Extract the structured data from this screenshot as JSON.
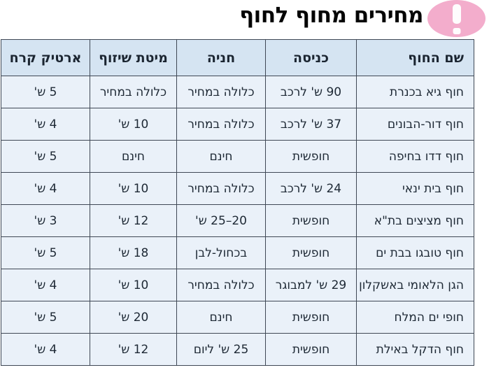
{
  "page": {
    "title": "מחירים מחוף לחוף"
  },
  "alert_icon": {
    "name": "exclamation-badge",
    "glyph": "!",
    "color": "#f3adcc"
  },
  "table": {
    "columns": [
      "שם החוף",
      "כניסה",
      "חניה",
      "מיטת שיזוף",
      "ארטיק קרח"
    ],
    "rows": [
      [
        "חוף גיא בכנרת",
        "90 ש' לרכב",
        "כלולה במחיר",
        "כלולה במחיר",
        "5 ש'"
      ],
      [
        "חוף דור-הבונים",
        "37 ש' לרכב",
        "כלולה במחיר",
        "10 ש'",
        "4 ש'"
      ],
      [
        "חוף דדו בחיפה",
        "חופשית",
        "חינם",
        "חינם",
        "5 ש'"
      ],
      [
        "חוף בית ינאי",
        "24 ש' לרכב",
        "כלולה במחיר",
        "10 ש'",
        "4 ש'"
      ],
      [
        "חוף מציצים בת\"א",
        "חופשית",
        "20–25 ש'",
        "12 ש'",
        "3 ש'"
      ],
      [
        "חוף טובגו בבת ים",
        "חופשית",
        "בכחול-לבן",
        "18 ש'",
        "5 ש'"
      ],
      [
        "הגן הלאומי באשקלון",
        "29 ש' למבוגר",
        "כלולה במחיר",
        "10 ש'",
        "4 ש'"
      ],
      [
        "חופי ים המלח",
        "חופשית",
        "חינם",
        "20 ש'",
        "5 ש'"
      ],
      [
        "חוף הדקל באילת",
        "חופשית",
        "25 ש' ליום",
        "12 ש'",
        "4 ש'"
      ]
    ],
    "colors": {
      "header_bg": "#d5e4f2",
      "cell_bg": "#eaf1f9",
      "border": "#3f4855",
      "text": "#1d2834"
    }
  }
}
